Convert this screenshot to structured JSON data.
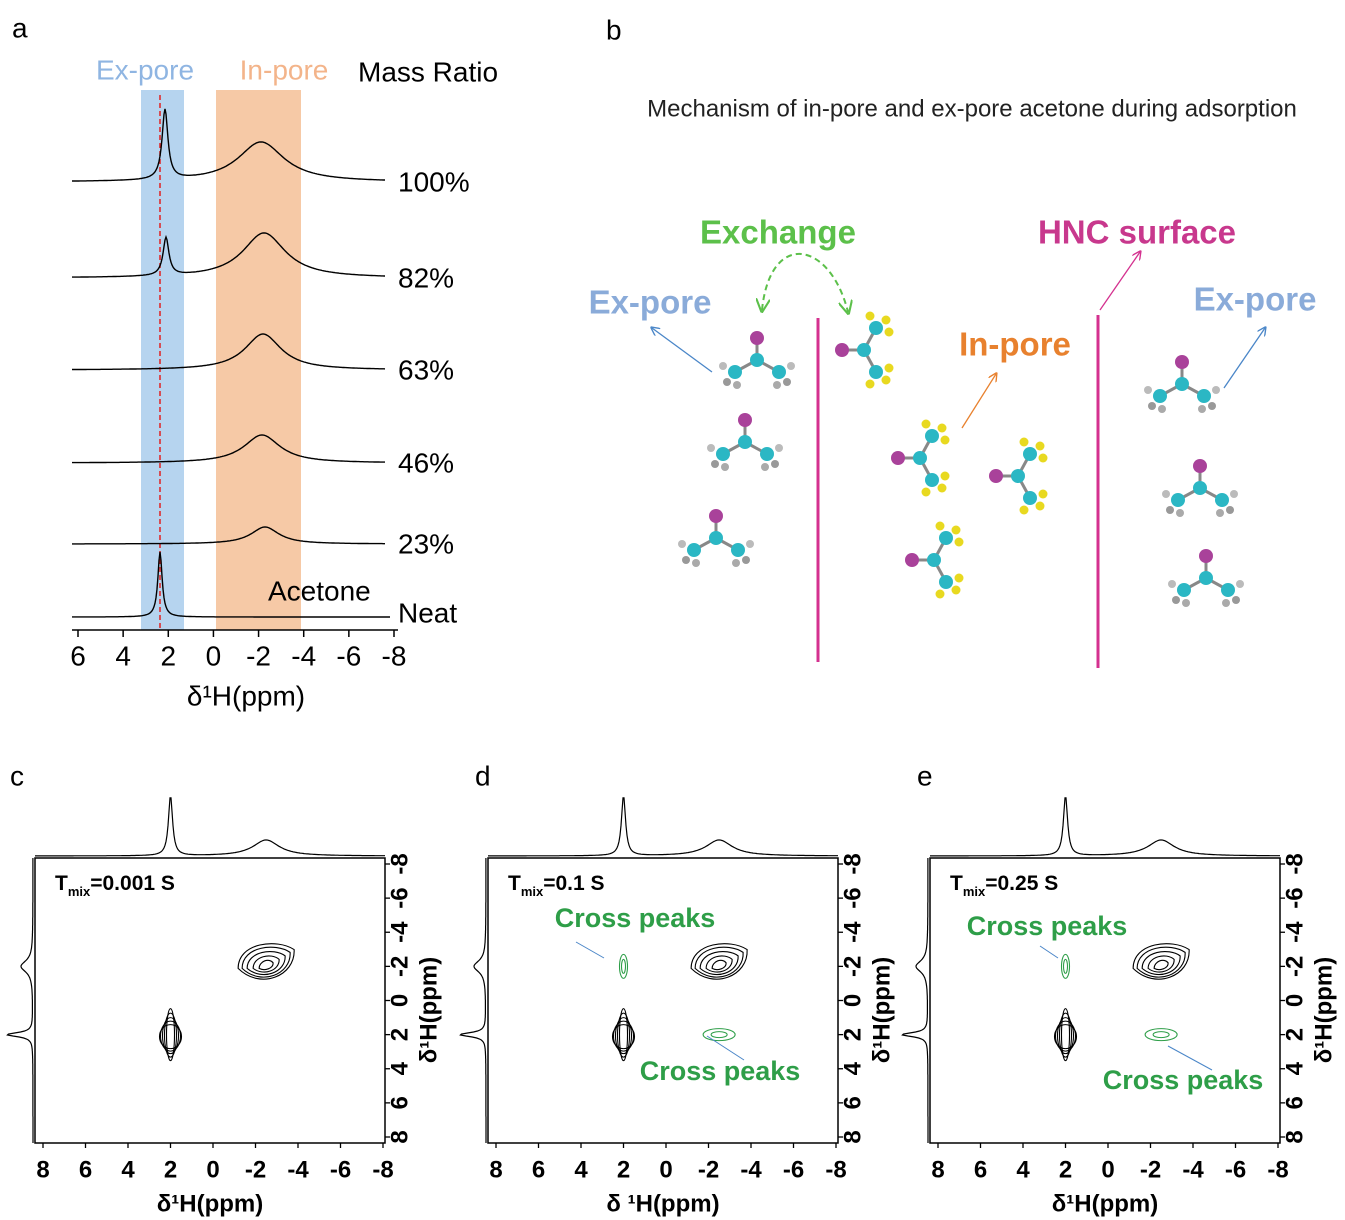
{
  "panel_a": {
    "label": "a",
    "ex_pore": "Ex-pore",
    "in_pore": "In-pore",
    "ratio_header": "Mass Ratio",
    "ratios": [
      "100%",
      "82%",
      "63%",
      "46%",
      "23%"
    ],
    "neat": [
      "Acetone",
      "Neat"
    ],
    "xticks": [
      6,
      4,
      2,
      0,
      -2,
      -4,
      -6,
      -8
    ],
    "xlabel": "δ¹H(ppm)"
  },
  "panel_b": {
    "label": "b",
    "title": "Mechanism of in-pore and ex-pore acetone during adsorption",
    "exchange": "Exchange",
    "surface": "HNC surface",
    "ex_pore_left": "Ex-pore",
    "in_pore": "In-pore",
    "ex_pore_right": "Ex-pore"
  },
  "panels_2d": [
    {
      "label": "c",
      "tmix": {
        "symbol": "T",
        "subscript": "mix",
        "value": "=0.001 S"
      },
      "xticks": [
        8,
        6,
        4,
        2,
        0,
        -2,
        -4,
        -6,
        -8
      ],
      "yticks": [
        -8,
        -6,
        -4,
        -2,
        0,
        2,
        4,
        6,
        8
      ],
      "xlabel": "δ¹H(ppm)",
      "ylabel": "δ¹H(ppm)"
    },
    {
      "label": "d",
      "tmix": {
        "symbol": "T",
        "subscript": "mix",
        "value": "=0.1 S"
      },
      "cross_peaks": [
        "Cross peaks",
        "Cross peaks"
      ],
      "xticks": [
        8,
        6,
        4,
        2,
        0,
        -2,
        -4,
        -6,
        -8
      ],
      "yticks": [
        -8,
        -6,
        -4,
        -2,
        0,
        2,
        4,
        6,
        8
      ],
      "xlabel": "δ ¹H(ppm)",
      "ylabel": "δ¹H(ppm)"
    },
    {
      "label": "e",
      "tmix": {
        "symbol": "T",
        "subscript": "mix",
        "value": "=0.25 S"
      },
      "cross_peaks": [
        "Cross peaks",
        "Cross peaks"
      ],
      "xticks": [
        8,
        6,
        4,
        2,
        0,
        -2,
        -4,
        -6,
        -8
      ],
      "yticks": [
        -8,
        -6,
        -4,
        -2,
        0,
        2,
        4,
        6,
        8
      ],
      "xlabel": "δ¹H(ppm)",
      "ylabel": "δ¹H(ppm)"
    }
  ]
}
